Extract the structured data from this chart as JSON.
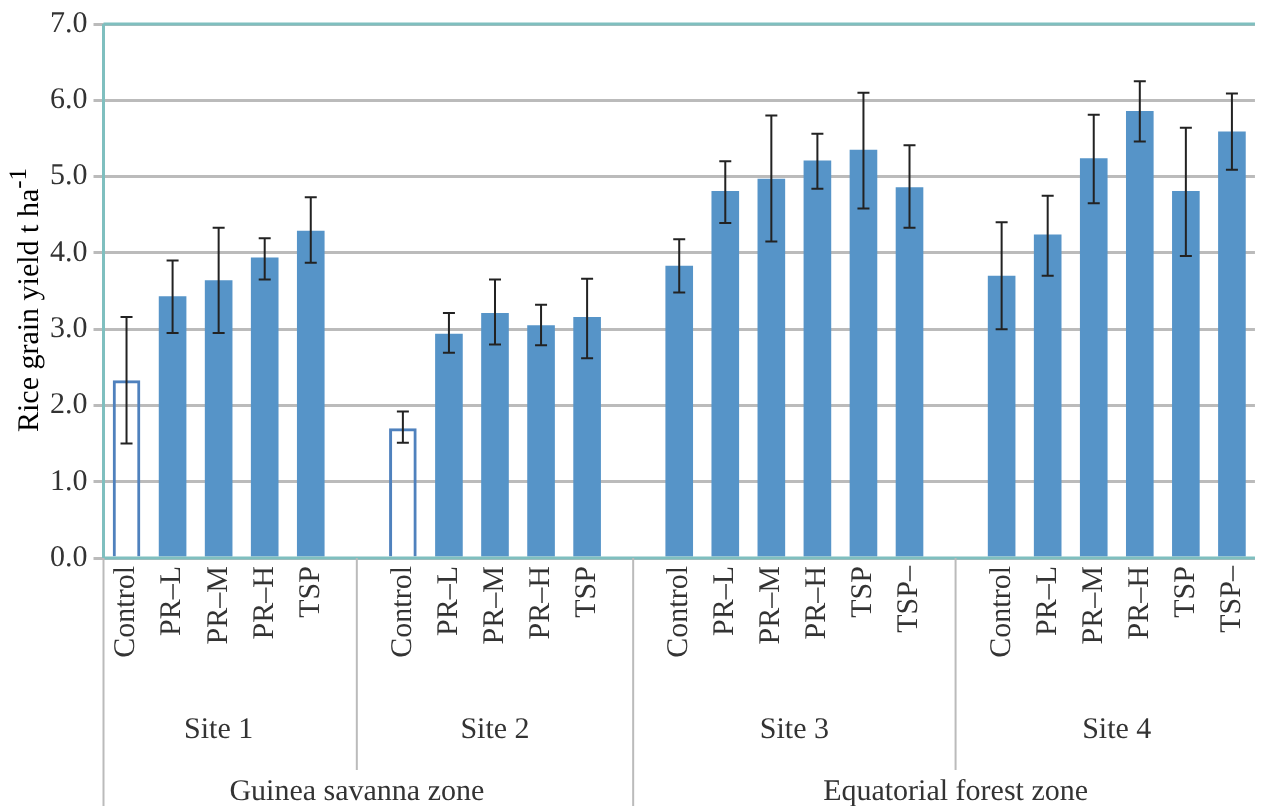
{
  "chart_data": {
    "type": "bar",
    "ylabel": "Rice grain yield  t ha$^{-1}$",
    "categories": [
      "Control",
      "PR–L",
      "PR–M",
      "PR–H",
      "TSP",
      null,
      "Control",
      "PR–L",
      "PR–M",
      "PR–H",
      "TSP",
      null,
      "Control",
      "PR–L",
      "PR–M",
      "PR–H",
      "TSP",
      "TSP–",
      null,
      "Control",
      "PR–L",
      "PR–M",
      "PR–H",
      "TSP",
      "TSP–"
    ],
    "values": [
      2.33,
      3.43,
      3.64,
      3.94,
      4.29,
      null,
      1.7,
      2.94,
      3.21,
      3.05,
      3.16,
      null,
      3.83,
      4.81,
      4.97,
      5.21,
      5.35,
      4.86,
      null,
      3.7,
      4.24,
      5.24,
      5.86,
      4.81,
      5.59
    ],
    "errors": [
      [
        1.5,
        3.16
      ],
      [
        2.95,
        3.9
      ],
      [
        2.95,
        4.33
      ],
      [
        3.65,
        4.19
      ],
      [
        3.87,
        4.73
      ],
      null,
      [
        1.51,
        1.92
      ],
      [
        2.69,
        3.21
      ],
      [
        2.8,
        3.65
      ],
      [
        2.79,
        3.32
      ],
      [
        2.62,
        3.66
      ],
      null,
      [
        3.48,
        4.18
      ],
      [
        4.39,
        5.2
      ],
      [
        4.15,
        5.8
      ],
      [
        4.84,
        5.56
      ],
      [
        4.58,
        6.1
      ],
      [
        4.33,
        5.41
      ],
      null,
      [
        3.0,
        4.4
      ],
      [
        3.7,
        4.75
      ],
      [
        4.65,
        5.81
      ],
      [
        5.46,
        6.25
      ],
      [
        3.96,
        5.64
      ],
      [
        5.09,
        6.09
      ]
    ],
    "color": "#5694c8",
    "colors": [
      "#4f81bd",
      "#5694c8",
      "#5694c8",
      "#5694c8",
      "#5694c8",
      null,
      "#4f81bd",
      "#5694c8",
      "#5694c8",
      "#5694c8",
      "#5694c8",
      null,
      "#5694c8",
      "#5694c8",
      "#5694c8",
      "#5694c8",
      "#5694c8",
      "#5694c8",
      null,
      "#5694c8",
      "#5694c8",
      "#5694c8",
      "#5694c8",
      "#5694c8",
      "#5694c8"
    ],
    "ylim": [
      0,
      7
    ],
    "yticks": [
      {
        "value": 0,
        "label": "0.0"
      },
      {
        "value": 1,
        "label": "1.0"
      },
      {
        "value": 2,
        "label": "2.0"
      },
      {
        "value": 3,
        "label": "3.0"
      },
      {
        "value": 4,
        "label": "4.0"
      },
      {
        "value": 5,
        "label": "5.0"
      },
      {
        "value": 6,
        "label": "6.0"
      },
      {
        "value": 7,
        "label": "7.0"
      }
    ],
    "grid": "y",
    "legend": false,
    "annotations": [
      "Site 1",
      "Site 2",
      "Site 3",
      "Site 4",
      "Guinea savanna zone",
      "Equatorial forest zone"
    ]
  }
}
